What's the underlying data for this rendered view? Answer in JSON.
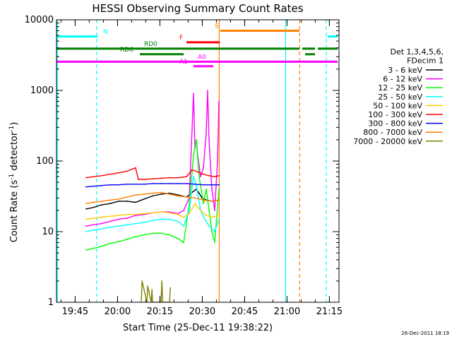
{
  "chart_data": {
    "type": "line",
    "title": "HESSI Observing Summary Count Rates",
    "xlabel": "Start Time (25-Dec-11 19:38:22)",
    "ylabel": "Count Rate (s",
    "ylabel_sup1": "-1",
    "ylabel_mid": " detector",
    "ylabel_sup2": "-1",
    "ylabel_end": ")",
    "timestamp": "26-Dec-2011 18:19",
    "x_scale": "time (minutes after 19:38:22)",
    "y_scale": "log",
    "xlim": [
      0,
      100
    ],
    "ylim": [
      1,
      10000
    ],
    "xticks": [
      {
        "label": "19:45",
        "x": 6.6
      },
      {
        "label": "20:00",
        "x": 21.6
      },
      {
        "label": "20:15",
        "x": 36.6
      },
      {
        "label": "20:30",
        "x": 51.6
      },
      {
        "label": "20:45",
        "x": 66.6
      },
      {
        "label": "21:00",
        "x": 81.6
      },
      {
        "label": "21:15",
        "x": 96.6
      }
    ],
    "yticks": [
      {
        "label": "1",
        "y": 1
      },
      {
        "label": "10",
        "y": 10
      },
      {
        "label": "100",
        "y": 100
      },
      {
        "label": "1000",
        "y": 1000
      },
      {
        "label": "10000",
        "y": 10000
      }
    ],
    "legend": {
      "placement": "right",
      "header": [
        "Det 1,3,4,5,6,",
        "FDecim 1"
      ],
      "entries": [
        {
          "label": "3 - 6 keV",
          "color": "#000000"
        },
        {
          "label": "6 - 12 keV",
          "color": "#ff00ff"
        },
        {
          "label": "12 - 25 keV",
          "color": "#00ff00"
        },
        {
          "label": "25 - 50 keV",
          "color": "#00ffff"
        },
        {
          "label": "50 - 100 keV",
          "color": "#ffcc00"
        },
        {
          "label": "100 - 300 keV",
          "color": "#ff0000"
        },
        {
          "label": "300 - 800 keV",
          "color": "#0000ff"
        },
        {
          "label": "800 - 7000 keV",
          "color": "#ff7f00"
        },
        {
          "label": "7000 - 20000 keV",
          "color": "#808000"
        }
      ]
    },
    "flags": [
      {
        "label": "N",
        "color": "#00ffff",
        "y": 5800,
        "segments": [
          [
            0,
            14.5
          ],
          [
            96,
            99.5
          ]
        ],
        "label_x": 16.5
      },
      {
        "label": "S",
        "color": "#ff7f00",
        "y": 7000,
        "segments": [
          [
            58,
            86
          ]
        ],
        "label_x": 56
      },
      {
        "label": "F",
        "color": "#ff0000",
        "y": 4800,
        "segments": [
          [
            46,
            57.8
          ]
        ],
        "label_x": 43.5
      },
      {
        "label": "RD0",
        "color": "#008000",
        "y": 3900,
        "segments": [
          [
            0,
            86
          ],
          [
            87,
            91.5
          ],
          [
            92.5,
            99.5
          ]
        ],
        "label_x": 31
      },
      {
        "label": "RD6",
        "color": "#008000",
        "y": 3250,
        "segments": [
          [
            29.5,
            45
          ]
        ],
        "label_x": 22.5,
        "extra_segments": [
          [
            88,
            91.5
          ]
        ],
        "extra_y": 3250
      },
      {
        "label": "A0",
        "color": "#ff00ff",
        "y": 2550,
        "segments": [
          [
            0,
            99.5
          ]
        ],
        "label_x": 50
      },
      {
        "label": "A1",
        "color": "#ff00ff",
        "y": 2200,
        "segments": [
          [
            48.5,
            55.5
          ]
        ],
        "label_x": 43.5
      }
    ],
    "vertical_lines": [
      {
        "x": 14.2,
        "color": "#00ffff",
        "style": "dashed"
      },
      {
        "x": 57.6,
        "color": "#ff7f00",
        "style": "solid"
      },
      {
        "x": 81.1,
        "color": "#00ffff",
        "style": "solid"
      },
      {
        "x": 86.1,
        "color": "#ff7f00",
        "style": "dashed"
      },
      {
        "x": 95.5,
        "color": "#00ffff",
        "style": "dashed"
      },
      {
        "x": 0.3,
        "color": "#00ffff",
        "style": "solid"
      }
    ],
    "series": [
      {
        "name": "3 - 6 keV",
        "color": "#000000",
        "x": [
          10.5,
          13,
          16,
          19,
          22,
          25,
          28,
          31,
          34,
          37,
          40,
          43,
          46,
          48,
          49.5,
          50.5,
          51.5,
          53,
          55,
          57.5
        ],
        "y": [
          21,
          22,
          24,
          25,
          27,
          27,
          26,
          29,
          32,
          34,
          35,
          33,
          31,
          36,
          40,
          35,
          30,
          28,
          27,
          28
        ]
      },
      {
        "name": "6 - 12 keV",
        "color": "#ff00ff",
        "x": [
          10.5,
          13,
          16,
          19,
          22,
          25,
          28,
          31,
          34,
          37,
          40,
          43,
          45,
          47,
          48.5,
          49,
          49.5,
          50,
          51,
          52,
          53,
          53.5,
          54,
          55,
          56,
          57,
          57.5
        ],
        "y": [
          12,
          12.5,
          13,
          14,
          15,
          15.5,
          17,
          17.5,
          18.5,
          19,
          19,
          18,
          20,
          30,
          900,
          150,
          200,
          120,
          60,
          80,
          250,
          1000,
          200,
          40,
          20,
          100,
          700
        ]
      },
      {
        "name": "12 - 25 keV",
        "color": "#00ff00",
        "x": [
          10.5,
          13,
          16,
          19,
          22,
          25,
          28,
          31,
          34,
          37,
          40,
          43,
          45,
          47,
          48.5,
          49.5,
          50.5,
          52,
          53,
          54,
          55,
          56,
          57.5
        ],
        "y": [
          5.5,
          5.8,
          6.2,
          6.8,
          7.2,
          7.8,
          8.5,
          9,
          9.5,
          9.5,
          9,
          8,
          7,
          25,
          120,
          200,
          60,
          25,
          40,
          20,
          10,
          7,
          40
        ]
      },
      {
        "name": "25 - 50 keV",
        "color": "#00ffff",
        "x": [
          10.5,
          13,
          16,
          19,
          22,
          25,
          28,
          31,
          34,
          37,
          40,
          43,
          45,
          47,
          48.5,
          49.5,
          51,
          52.5,
          54,
          56,
          57.5
        ],
        "y": [
          10,
          10.5,
          11,
          11.5,
          12,
          12.5,
          13,
          13.5,
          14.5,
          15,
          15,
          14,
          12,
          20,
          60,
          45,
          20,
          15,
          12,
          10,
          15
        ]
      },
      {
        "name": "50 - 100 keV",
        "color": "#ffcc00",
        "x": [
          10.5,
          13,
          16,
          19,
          22,
          25,
          28,
          31,
          34,
          37,
          40,
          43,
          45,
          47,
          49,
          51,
          53,
          55,
          57.5
        ],
        "y": [
          15,
          15.5,
          16,
          16.5,
          17,
          17.5,
          17.5,
          18,
          18.5,
          19,
          18.5,
          17.5,
          16,
          18,
          25,
          20,
          17,
          16,
          17
        ]
      },
      {
        "name": "100 - 300 keV",
        "color": "#ff0000",
        "x": [
          10.5,
          13,
          16,
          19,
          22,
          25,
          28,
          29,
          31,
          34,
          37,
          40,
          43,
          46,
          48,
          50,
          52,
          54,
          56,
          57.5
        ],
        "y": [
          58,
          60,
          62,
          65,
          68,
          72,
          80,
          55,
          55,
          56,
          57,
          58,
          58,
          60,
          75,
          70,
          65,
          62,
          60,
          62
        ]
      },
      {
        "name": "300 - 800 keV",
        "color": "#0000ff",
        "x": [
          10.5,
          13,
          16,
          19,
          22,
          25,
          28,
          31,
          34,
          37,
          40,
          43,
          46,
          49,
          52,
          55,
          57.5
        ],
        "y": [
          43,
          44,
          45,
          46,
          46,
          47,
          47,
          47,
          48,
          48,
          48,
          48,
          48,
          47,
          46,
          46,
          46
        ]
      },
      {
        "name": "800 - 7000 keV",
        "color": "#ff7f00",
        "x": [
          10.5,
          13,
          16,
          19,
          22,
          25,
          28,
          31,
          34,
          37,
          40,
          43,
          46,
          49,
          52,
          55,
          57.5
        ],
        "y": [
          25,
          26,
          27,
          28,
          29,
          31,
          33,
          34,
          35,
          36,
          34,
          32,
          31,
          30,
          28,
          27,
          28
        ]
      },
      {
        "name": "7000 - 20000 keV",
        "color": "#808000",
        "x": [
          30,
          30.3,
          32,
          32.3,
          33.5,
          33.8,
          34,
          37,
          37.3,
          37.6,
          40,
          40.3
        ],
        "y": [
          1,
          2,
          1,
          1.7,
          1,
          1.5,
          1,
          1,
          2,
          1,
          1,
          1.6
        ]
      }
    ]
  }
}
